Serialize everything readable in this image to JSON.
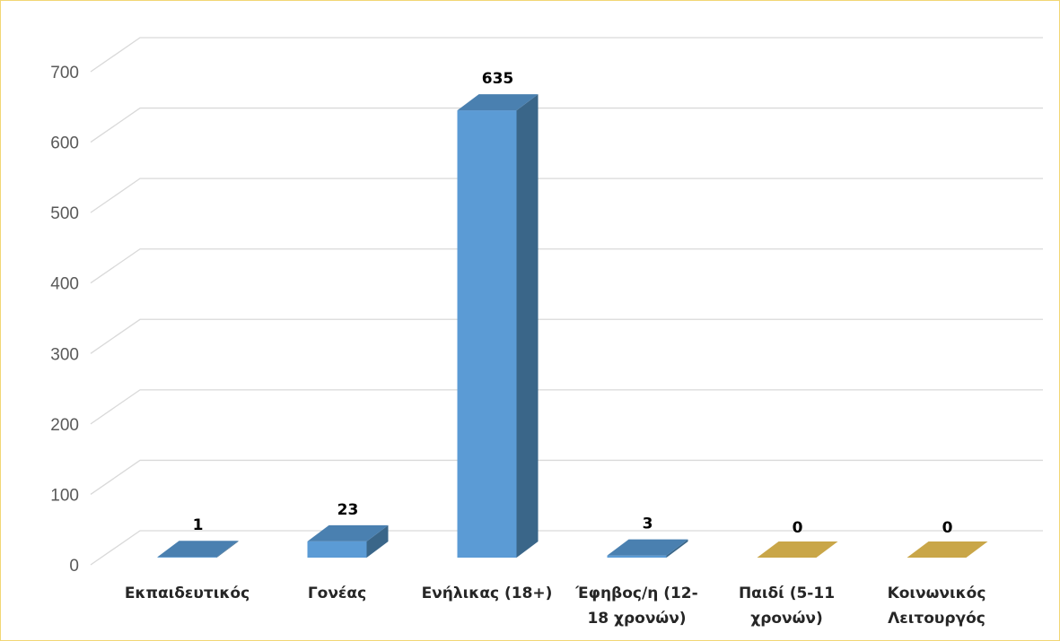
{
  "chart_data": {
    "type": "bar",
    "style": "3d-column",
    "categories": [
      [
        "Εκπαιδευτικός"
      ],
      [
        "Γονέας"
      ],
      [
        "Ενήλικας (18+)"
      ],
      [
        "Έφηβος/η (12-",
        "18 χρονών)"
      ],
      [
        "Παιδί (5-11",
        "χρονών)"
      ],
      [
        "Κοινωνικός",
        "Λειτουργός"
      ]
    ],
    "values": [
      1,
      23,
      635,
      3,
      0,
      0
    ],
    "data_labels": [
      "1",
      "23",
      "635",
      "3",
      "0",
      "0"
    ],
    "ylim": [
      0,
      700
    ],
    "yticks": [
      "0",
      "100",
      "200",
      "300",
      "400",
      "500",
      "600",
      "700"
    ],
    "title": "",
    "xlabel": "",
    "ylabel": "",
    "grid": true,
    "colors": {
      "bar_front": "#5b9bd5",
      "bar_side": "#3a6689",
      "bar_top": "#4a80b0",
      "zero_floor": "#c9a648",
      "grid": "#d9d9d9",
      "frame": "#f2d675"
    }
  }
}
